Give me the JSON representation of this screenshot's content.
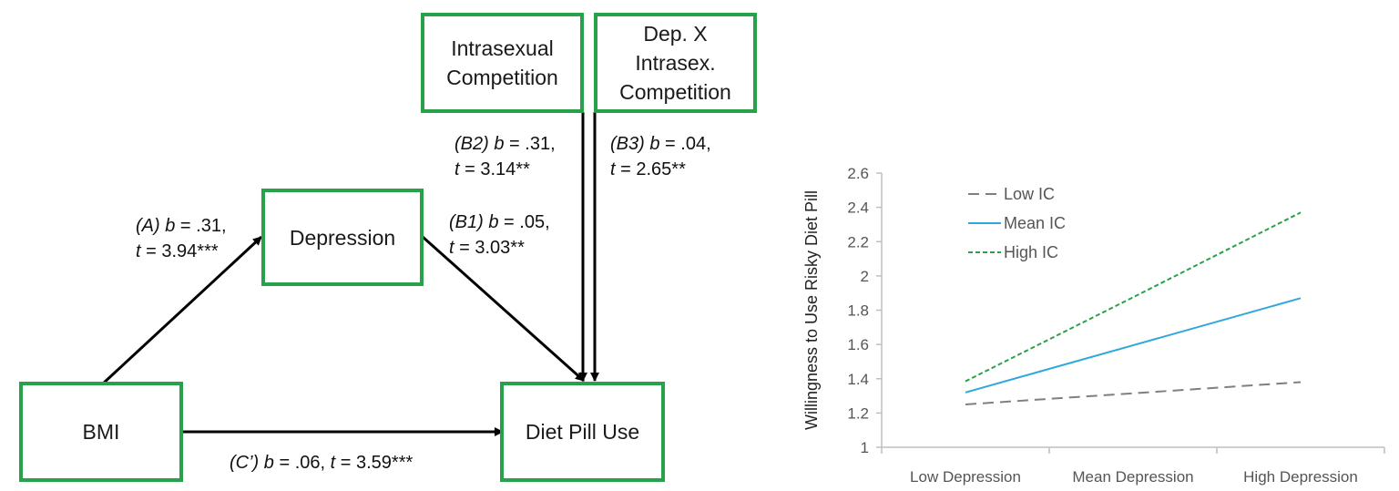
{
  "diagram": {
    "nodes": {
      "bmi": "BMI",
      "depression": "Depression",
      "diet_pill_use": "Diet Pill Use",
      "intrasexual_line1": "Intrasexual",
      "intrasexual_line2": "Competition",
      "interaction_line1": "Dep. X",
      "interaction_line2": "Intrasex.",
      "interaction_line3": "Competition"
    },
    "paths": {
      "a": {
        "tag": "(A)",
        "b": ".31,",
        "t": "3.94***"
      },
      "b1": {
        "tag": "(B1)",
        "b": ".05,",
        "t": "3.03**"
      },
      "b2": {
        "tag": "(B2)",
        "b": ".31,",
        "t": "3.14**"
      },
      "b3": {
        "tag": "(B3)",
        "b": ".04,",
        "t": "2.65**"
      },
      "c_prime": {
        "tag": "(C’)",
        "b": ".06,",
        "t": "3.59***"
      }
    },
    "stat_symbols": {
      "b": "b",
      "t": "t",
      "eq": " = "
    },
    "colors": {
      "box_border": "#27a24a",
      "arrow": "#000000"
    }
  },
  "chart_data": {
    "type": "line",
    "ylabel": "Willingness to Use Risky Diet Pill",
    "xlabel": "",
    "categories": [
      "Low Depression",
      "Mean Depression",
      "High Depression"
    ],
    "ylim": [
      1,
      2.6
    ],
    "yticks": [
      "1",
      "1.2",
      "1.4",
      "1.6",
      "1.8",
      "2",
      "2.2",
      "2.4",
      "2.6"
    ],
    "grid": false,
    "legend_position": "top-left",
    "series": [
      {
        "name": "Low IC",
        "values": [
          1.25,
          1.315,
          1.38
        ],
        "color": "#7f7f7f",
        "dash": "long-dash"
      },
      {
        "name": "Mean IC",
        "values": [
          1.32,
          1.595,
          1.87
        ],
        "color": "#2ea8dc",
        "dash": "solid"
      },
      {
        "name": "High IC",
        "values": [
          1.385,
          1.875,
          2.37
        ],
        "color": "#27a24a",
        "dash": "short-dash"
      }
    ]
  }
}
